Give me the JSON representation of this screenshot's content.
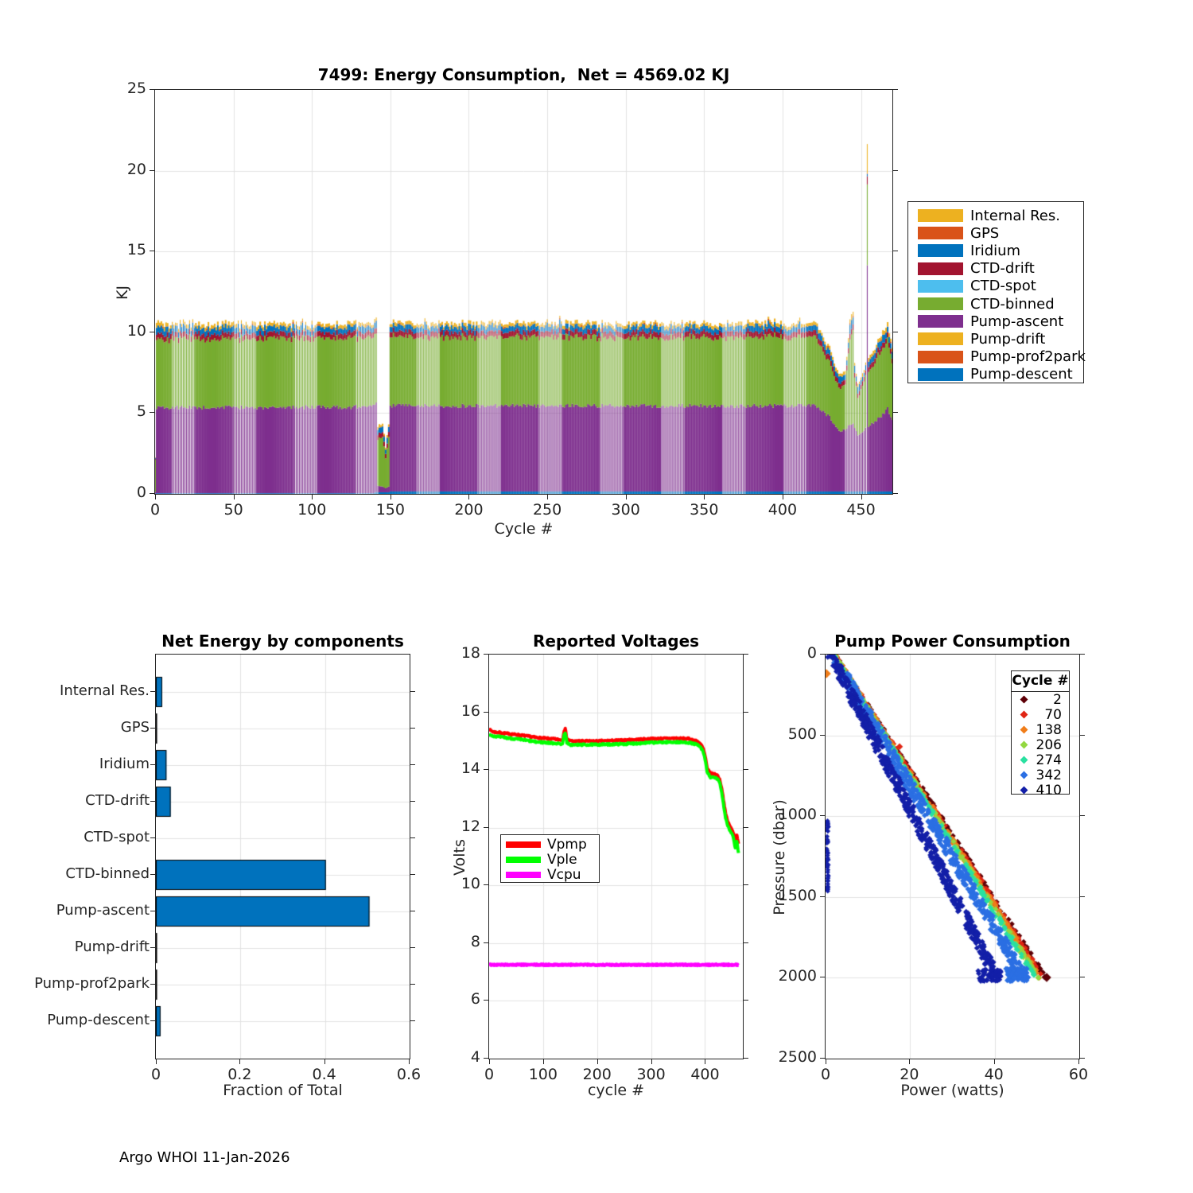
{
  "figure": {
    "footer": "Argo WHOI 11-Jan-2026"
  },
  "chart_data": [
    {
      "id": "energy_consumption",
      "type": "bar",
      "title": "7499: Energy Consumption,  Net = 4569.02 KJ",
      "xlabel": "Cycle #",
      "ylabel": "KJ",
      "xlim": [
        0,
        470
      ],
      "ylim": [
        0,
        25
      ],
      "xticks": [
        0,
        50,
        100,
        150,
        200,
        250,
        300,
        350,
        400,
        450
      ],
      "yticks": [
        0,
        5,
        10,
        15,
        20,
        25
      ],
      "grid": true,
      "legend_position": "right-outside",
      "legend": [
        {
          "label": "Internal Res.",
          "color": "#EDB120"
        },
        {
          "label": "GPS",
          "color": "#D95319"
        },
        {
          "label": "Iridium",
          "color": "#0072BD"
        },
        {
          "label": "CTD-drift",
          "color": "#A2142F"
        },
        {
          "label": "CTD-spot",
          "color": "#4DBEEE"
        },
        {
          "label": "CTD-binned",
          "color": "#77AC30"
        },
        {
          "label": "Pump-ascent",
          "color": "#7E2F8E"
        },
        {
          "label": "Pump-drift",
          "color": "#EDB120"
        },
        {
          "label": "Pump-prof2park",
          "color": "#D95319"
        },
        {
          "label": "Pump-descent",
          "color": "#0072BD"
        }
      ],
      "stack_order_bottom_to_top": [
        "Pump-descent",
        "Pump-ascent",
        "CTD-binned",
        "CTD-drift",
        "Iridium",
        "GPS",
        "Internal Res."
      ],
      "stack_colors": [
        "#0072BD",
        "#7E2F8E",
        "#77AC30",
        "#A2142F",
        "#0072BD",
        "#D95319",
        "#EDB120"
      ],
      "keyframes_note": "cycle, then KJ per series in stack order bottom-to-top; linear interpolation between keyframes, typical total ~10.5 KJ, anomaly dip near cycles 142-150, battery-end dip 425-452, single tall spike ~21.6 KJ at cycle 454",
      "keyframes": [
        [
          0,
          0.02,
          0.1,
          2.0,
          0.05,
          0.05,
          0.01,
          0.03
        ],
        [
          1,
          0.04,
          5.3,
          4.25,
          0.33,
          0.45,
          0.02,
          0.28
        ],
        [
          8,
          0.04,
          5.3,
          4.25,
          0.33,
          0.35,
          0.02,
          0.2
        ],
        [
          139,
          0.04,
          5.35,
          4.25,
          0.33,
          0.3,
          0.02,
          0.18
        ],
        [
          141,
          0.12,
          5.45,
          4.3,
          0.33,
          0.45,
          0.02,
          0.22
        ],
        [
          142,
          0.1,
          0.4,
          2.9,
          0.3,
          0.3,
          0.02,
          0.15
        ],
        [
          145,
          0.1,
          0.35,
          3.2,
          0.3,
          0.3,
          0.02,
          0.15
        ],
        [
          147,
          0.1,
          0.25,
          1.8,
          0.28,
          0.28,
          0.02,
          0.12
        ],
        [
          149,
          0.1,
          0.35,
          3.0,
          0.3,
          0.3,
          0.02,
          0.15
        ],
        [
          150,
          0.15,
          5.3,
          4.25,
          0.33,
          0.3,
          0.02,
          0.18
        ],
        [
          421,
          0.15,
          5.3,
          4.25,
          0.33,
          0.3,
          0.02,
          0.18
        ],
        [
          429,
          0.15,
          4.7,
          3.5,
          0.33,
          0.3,
          0.02,
          0.18
        ],
        [
          436,
          0.15,
          3.75,
          2.65,
          0.3,
          0.28,
          0.02,
          0.17
        ],
        [
          440,
          0.15,
          3.85,
          2.75,
          0.3,
          0.28,
          0.02,
          0.17
        ],
        [
          443,
          0.15,
          4.15,
          5.3,
          0.35,
          0.4,
          0.02,
          0.28
        ],
        [
          445,
          0.15,
          4.25,
          5.9,
          0.35,
          0.42,
          0.02,
          0.3
        ],
        [
          446,
          0.15,
          3.9,
          3.2,
          0.3,
          0.28,
          0.02,
          0.18
        ],
        [
          448,
          0.15,
          3.5,
          2.3,
          0.28,
          0.25,
          0.02,
          0.15
        ],
        [
          452,
          0.15,
          3.8,
          3.1,
          0.3,
          0.28,
          0.02,
          0.18
        ],
        [
          453,
          0.15,
          3.9,
          3.3,
          0.3,
          0.28,
          0.02,
          0.18
        ],
        [
          454,
          0.15,
          14.0,
          5.0,
          0.5,
          0.15,
          0.05,
          1.8
        ],
        [
          455,
          0.15,
          4.0,
          3.3,
          0.3,
          0.3,
          0.02,
          0.2
        ],
        [
          461,
          0.15,
          4.5,
          3.9,
          0.33,
          0.3,
          0.02,
          0.2
        ],
        [
          467,
          0.15,
          5.1,
          4.3,
          0.33,
          0.35,
          0.02,
          0.25
        ],
        [
          470,
          0.15,
          4.4,
          3.6,
          0.3,
          0.3,
          0.02,
          0.2
        ]
      ],
      "stripe_period": 39,
      "stripe_range": [
        11,
        25
      ]
    },
    {
      "id": "net_energy",
      "type": "bar",
      "orientation": "horizontal",
      "title": "Net Energy by components",
      "xlabel": "Fraction of Total",
      "categories": [
        "Internal Res.",
        "GPS",
        "Iridium",
        "CTD-drift",
        "CTD-spot",
        "CTD-binned",
        "Pump-ascent",
        "Pump-drift",
        "Pump-prof2park",
        "Pump-descent"
      ],
      "values": [
        0.015,
        0.002,
        0.025,
        0.035,
        0.0,
        0.402,
        0.505,
        0.001,
        0.001,
        0.011
      ],
      "xlim": [
        0,
        0.6
      ],
      "xticks": [
        0,
        0.2,
        0.4,
        0.6
      ],
      "grid": true,
      "bar_color": "#0072BD",
      "bar_edge_color": "#000000"
    },
    {
      "id": "reported_voltages",
      "type": "line",
      "title": "Reported Voltages",
      "xlabel": "cycle #",
      "ylabel": "Volts",
      "xlim": [
        0,
        470
      ],
      "ylim": [
        4,
        18
      ],
      "xticks": [
        0,
        100,
        200,
        300,
        400
      ],
      "yticks": [
        4,
        6,
        8,
        10,
        12,
        14,
        16,
        18
      ],
      "grid": true,
      "legend_position": "lower-left-inside",
      "series": [
        {
          "name": "Vpmp",
          "color": "#FF0000",
          "x": [
            0,
            2,
            8,
            30,
            60,
            90,
            120,
            136,
            139,
            141,
            144,
            148,
            155,
            200,
            250,
            300,
            340,
            370,
            385,
            392,
            397,
            401,
            404,
            410,
            420,
            424,
            428,
            432,
            435,
            438,
            442,
            446,
            450,
            453,
            456,
            459,
            462
          ],
          "y": [
            15.45,
            15.38,
            15.32,
            15.27,
            15.2,
            15.12,
            15.07,
            15.04,
            15.38,
            15.42,
            15.1,
            15.02,
            15.0,
            15.0,
            15.03,
            15.08,
            15.1,
            15.08,
            15.0,
            14.9,
            14.72,
            14.4,
            14.05,
            13.88,
            13.85,
            13.8,
            13.62,
            13.25,
            12.85,
            12.5,
            12.22,
            12.05,
            11.95,
            11.78,
            11.55,
            11.72,
            11.42
          ]
        },
        {
          "name": "Vple",
          "color": "#00FF00",
          "x": [
            0,
            2,
            8,
            30,
            60,
            90,
            120,
            136,
            139,
            141,
            144,
            148,
            155,
            200,
            250,
            300,
            340,
            370,
            385,
            392,
            397,
            401,
            404,
            410,
            420,
            424,
            428,
            432,
            435,
            438,
            442,
            446,
            450,
            453,
            456,
            459,
            462
          ],
          "y": [
            15.28,
            15.22,
            15.18,
            15.12,
            15.05,
            14.97,
            14.93,
            14.9,
            15.25,
            15.28,
            14.95,
            14.88,
            14.87,
            14.88,
            14.9,
            14.95,
            14.97,
            14.95,
            14.88,
            14.78,
            14.6,
            14.28,
            13.92,
            13.75,
            13.72,
            13.67,
            13.5,
            13.1,
            12.7,
            12.35,
            12.08,
            11.9,
            11.8,
            11.6,
            11.3,
            11.5,
            11.12
          ]
        },
        {
          "name": "Vcpu",
          "color": "#FF00FF",
          "x": [
            0,
            462
          ],
          "y": [
            7.25,
            7.25
          ]
        }
      ]
    },
    {
      "id": "pump_power",
      "type": "scatter",
      "title": "Pump Power Consumption",
      "xlabel": "Power (watts)",
      "ylabel": "Pressure (dbar)",
      "xlim": [
        0,
        60
      ],
      "ylim": [
        0,
        2500
      ],
      "y_reversed": true,
      "xticks": [
        0,
        20,
        40,
        60
      ],
      "yticks": [
        0,
        500,
        1000,
        1500,
        2000,
        2500
      ],
      "grid": true,
      "legend_title": "Cycle #",
      "groups_note": "descending profiles: power grows ~linearly with pressure from ~2 W at surface to group end-power at ~2000 dbar",
      "groups": [
        {
          "cycle": 2,
          "color": "#5E0007",
          "x_start": 2.0,
          "x_end": 52.0,
          "jitter": 0.8,
          "n": 170
        },
        {
          "cycle": 70,
          "color": "#E02514",
          "x_start": 2.0,
          "x_end": 51.4,
          "jitter": 0.9,
          "n": 180
        },
        {
          "cycle": 138,
          "color": "#F07D1A",
          "x_start": 2.0,
          "x_end": 50.8,
          "jitter": 0.9,
          "n": 180
        },
        {
          "cycle": 206,
          "color": "#93D840",
          "x_start": 2.0,
          "x_end": 50.2,
          "jitter": 0.9,
          "n": 180
        },
        {
          "cycle": 274,
          "color": "#29E0A0",
          "x_start": 1.8,
          "x_end": 49.6,
          "jitter": 0.9,
          "n": 180
        },
        {
          "cycle": 342,
          "color": "#2B6FE3",
          "x_start": 1.5,
          "x_end": 47.0,
          "jitter": 2.6,
          "n": 520
        },
        {
          "cycle": 410,
          "color": "#131FA8",
          "x_start": 1.2,
          "x_end": 40.5,
          "jitter": 2.4,
          "n": 520
        }
      ],
      "extras": [
        {
          "kind": "dot",
          "color": "#F07D1A",
          "x": 0.2,
          "p": 118,
          "s": 8
        },
        {
          "kind": "dot",
          "color": "#5E0007",
          "x": 52.3,
          "p": 1998,
          "s": 8
        },
        {
          "kind": "dot",
          "color": "#E02514",
          "x": 17.5,
          "p": 570,
          "s": 6
        },
        {
          "kind": "wall",
          "color": "#131FA8",
          "x": 0.45,
          "p1": 1025,
          "p2": 1465,
          "n": 55,
          "jx": 0.45
        },
        {
          "kind": "cluster",
          "color": "#2B6FE3",
          "x1": 42.5,
          "x2": 47.6,
          "p1": 1940,
          "p2": 2020,
          "n": 80
        },
        {
          "kind": "cluster",
          "color": "#131FA8",
          "x1": 36.0,
          "x2": 41.5,
          "p1": 1950,
          "p2": 2020,
          "n": 60
        }
      ]
    }
  ]
}
